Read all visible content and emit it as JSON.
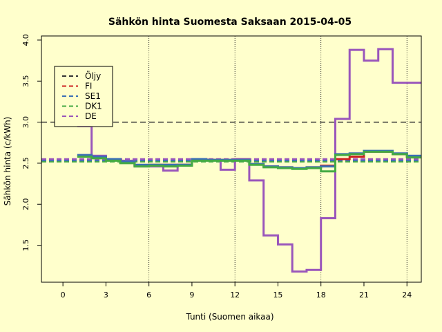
{
  "chart_data": {
    "type": "line",
    "title": "Sähkön hinta Suomesta Saksaan 2015-04-05",
    "xlabel": "Tunti (Suomen aikaa)",
    "ylabel": "Sähkön hinta (c/kWh)",
    "xlim": [
      -1.5,
      25
    ],
    "ylim": [
      1.05,
      4.05
    ],
    "x_ticks": [
      0,
      3,
      6,
      9,
      12,
      15,
      18,
      21,
      24
    ],
    "y_ticks": [
      1.5,
      2.0,
      2.5,
      3.0,
      3.5,
      4.0
    ],
    "y_tick_labels": [
      "1.5",
      "2.0",
      "2.5",
      "3.0",
      "3.5",
      "4.0"
    ],
    "vgrid": [
      6,
      12,
      18,
      24
    ],
    "legend_position": "top-left",
    "oil_level": 3.0,
    "step_x": [
      1,
      2,
      3,
      4,
      5,
      6,
      7,
      8,
      9,
      10,
      11,
      12,
      13,
      14,
      15,
      16,
      17,
      18,
      19,
      20,
      21,
      22,
      23,
      24
    ],
    "series": [
      {
        "name": "Öljy",
        "color": "#333333",
        "dashed": true,
        "horizontal": 3.0
      },
      {
        "name": "FI",
        "color": "#cc2222",
        "dashed": true,
        "values": [
          2.59,
          2.57,
          2.54,
          2.51,
          2.47,
          2.48,
          2.48,
          2.48,
          2.55,
          2.54,
          2.54,
          2.54,
          2.49,
          2.46,
          2.45,
          2.44,
          2.45,
          2.47,
          2.55,
          2.58,
          2.64,
          2.64,
          2.61,
          2.58
        ]
      },
      {
        "name": "SE1",
        "color": "#3b6fb6",
        "dashed": true,
        "values": [
          2.6,
          2.58,
          2.55,
          2.52,
          2.48,
          2.48,
          2.48,
          2.48,
          2.55,
          2.54,
          2.54,
          2.54,
          2.49,
          2.46,
          2.45,
          2.44,
          2.45,
          2.46,
          2.61,
          2.62,
          2.65,
          2.65,
          2.62,
          2.59
        ]
      },
      {
        "name": "DK1",
        "color": "#44aa44",
        "dashed": true,
        "values": [
          2.58,
          2.56,
          2.53,
          2.5,
          2.46,
          2.47,
          2.46,
          2.47,
          2.53,
          2.53,
          2.53,
          2.53,
          2.48,
          2.45,
          2.44,
          2.43,
          2.44,
          2.4,
          2.6,
          2.61,
          2.64,
          2.64,
          2.61,
          2.57
        ]
      },
      {
        "name": "DE",
        "color": "#9955bb",
        "dashed": true,
        "values": [
          2.95,
          2.59,
          2.55,
          2.53,
          2.46,
          2.46,
          2.41,
          2.48,
          2.55,
          2.54,
          2.42,
          2.55,
          2.29,
          1.62,
          1.51,
          1.18,
          1.2,
          1.83,
          3.04,
          3.88,
          3.75,
          3.89,
          3.48,
          3.48
        ]
      }
    ]
  }
}
